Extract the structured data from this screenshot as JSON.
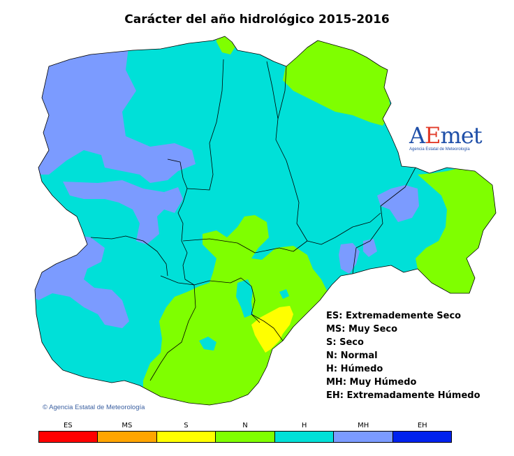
{
  "title": "Carácter del año hidrológico 2015-2016",
  "logo": {
    "word_a": "A",
    "word_e": "E",
    "word_rest": "met",
    "subtitle": "Agencia Estatal de Meteorología"
  },
  "copyright": "© Agencia Estatal de Meteorología",
  "legend": [
    "ES: Extremademente Seco",
    "MS: Muy Seco",
    "S: Seco",
    "N: Normal",
    "H: Húmedo",
    "MH: Muy Húmedo",
    "EH: Extremadamente Húmedo"
  ],
  "scale": [
    {
      "code": "ES",
      "color": "#ff0000"
    },
    {
      "code": "MS",
      "color": "#ffa500"
    },
    {
      "code": "S",
      "color": "#ffff00"
    },
    {
      "code": "N",
      "color": "#7fff00"
    },
    {
      "code": "H",
      "color": "#00e0d8"
    },
    {
      "code": "MH",
      "color": "#7b9bff"
    },
    {
      "code": "EH",
      "color": "#0022ee"
    }
  ]
}
